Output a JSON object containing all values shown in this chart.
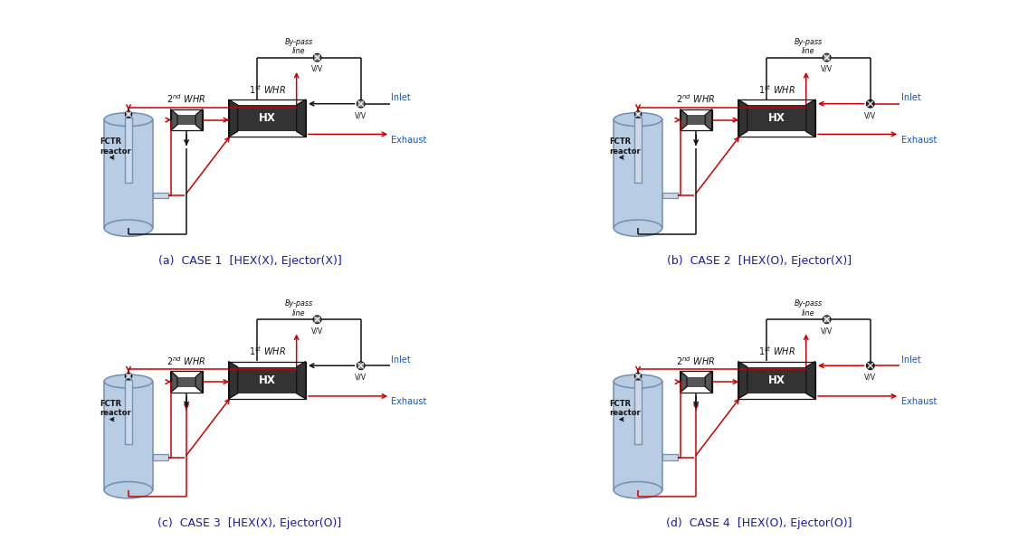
{
  "cases": [
    {
      "label": "(a)  CASE 1  [HEX(X), Ejector(X)]",
      "has_hex": false,
      "has_ejector": false
    },
    {
      "label": "(b)  CASE 2  [HEX(O), Ejector(X)]",
      "has_hex": true,
      "has_ejector": false
    },
    {
      "label": "(c)  CASE 3  [HEX(X), Ejector(O)]",
      "has_hex": false,
      "has_ejector": true
    },
    {
      "label": "(d)  CASE 4  [HEX(O), Ejector(O)]",
      "has_hex": true,
      "has_ejector": true
    }
  ],
  "red": "#cc0000",
  "black": "#111111",
  "blue": "#1155cc",
  "reactor_fill": "#b8cce4",
  "reactor_edge": "#7090b0",
  "whr_fill": "#555555",
  "hx_fill": "#333333",
  "valve_open": "#888888",
  "valve_closed": "#333333",
  "bg": "#ffffff",
  "label_color": "#1a1aaa"
}
